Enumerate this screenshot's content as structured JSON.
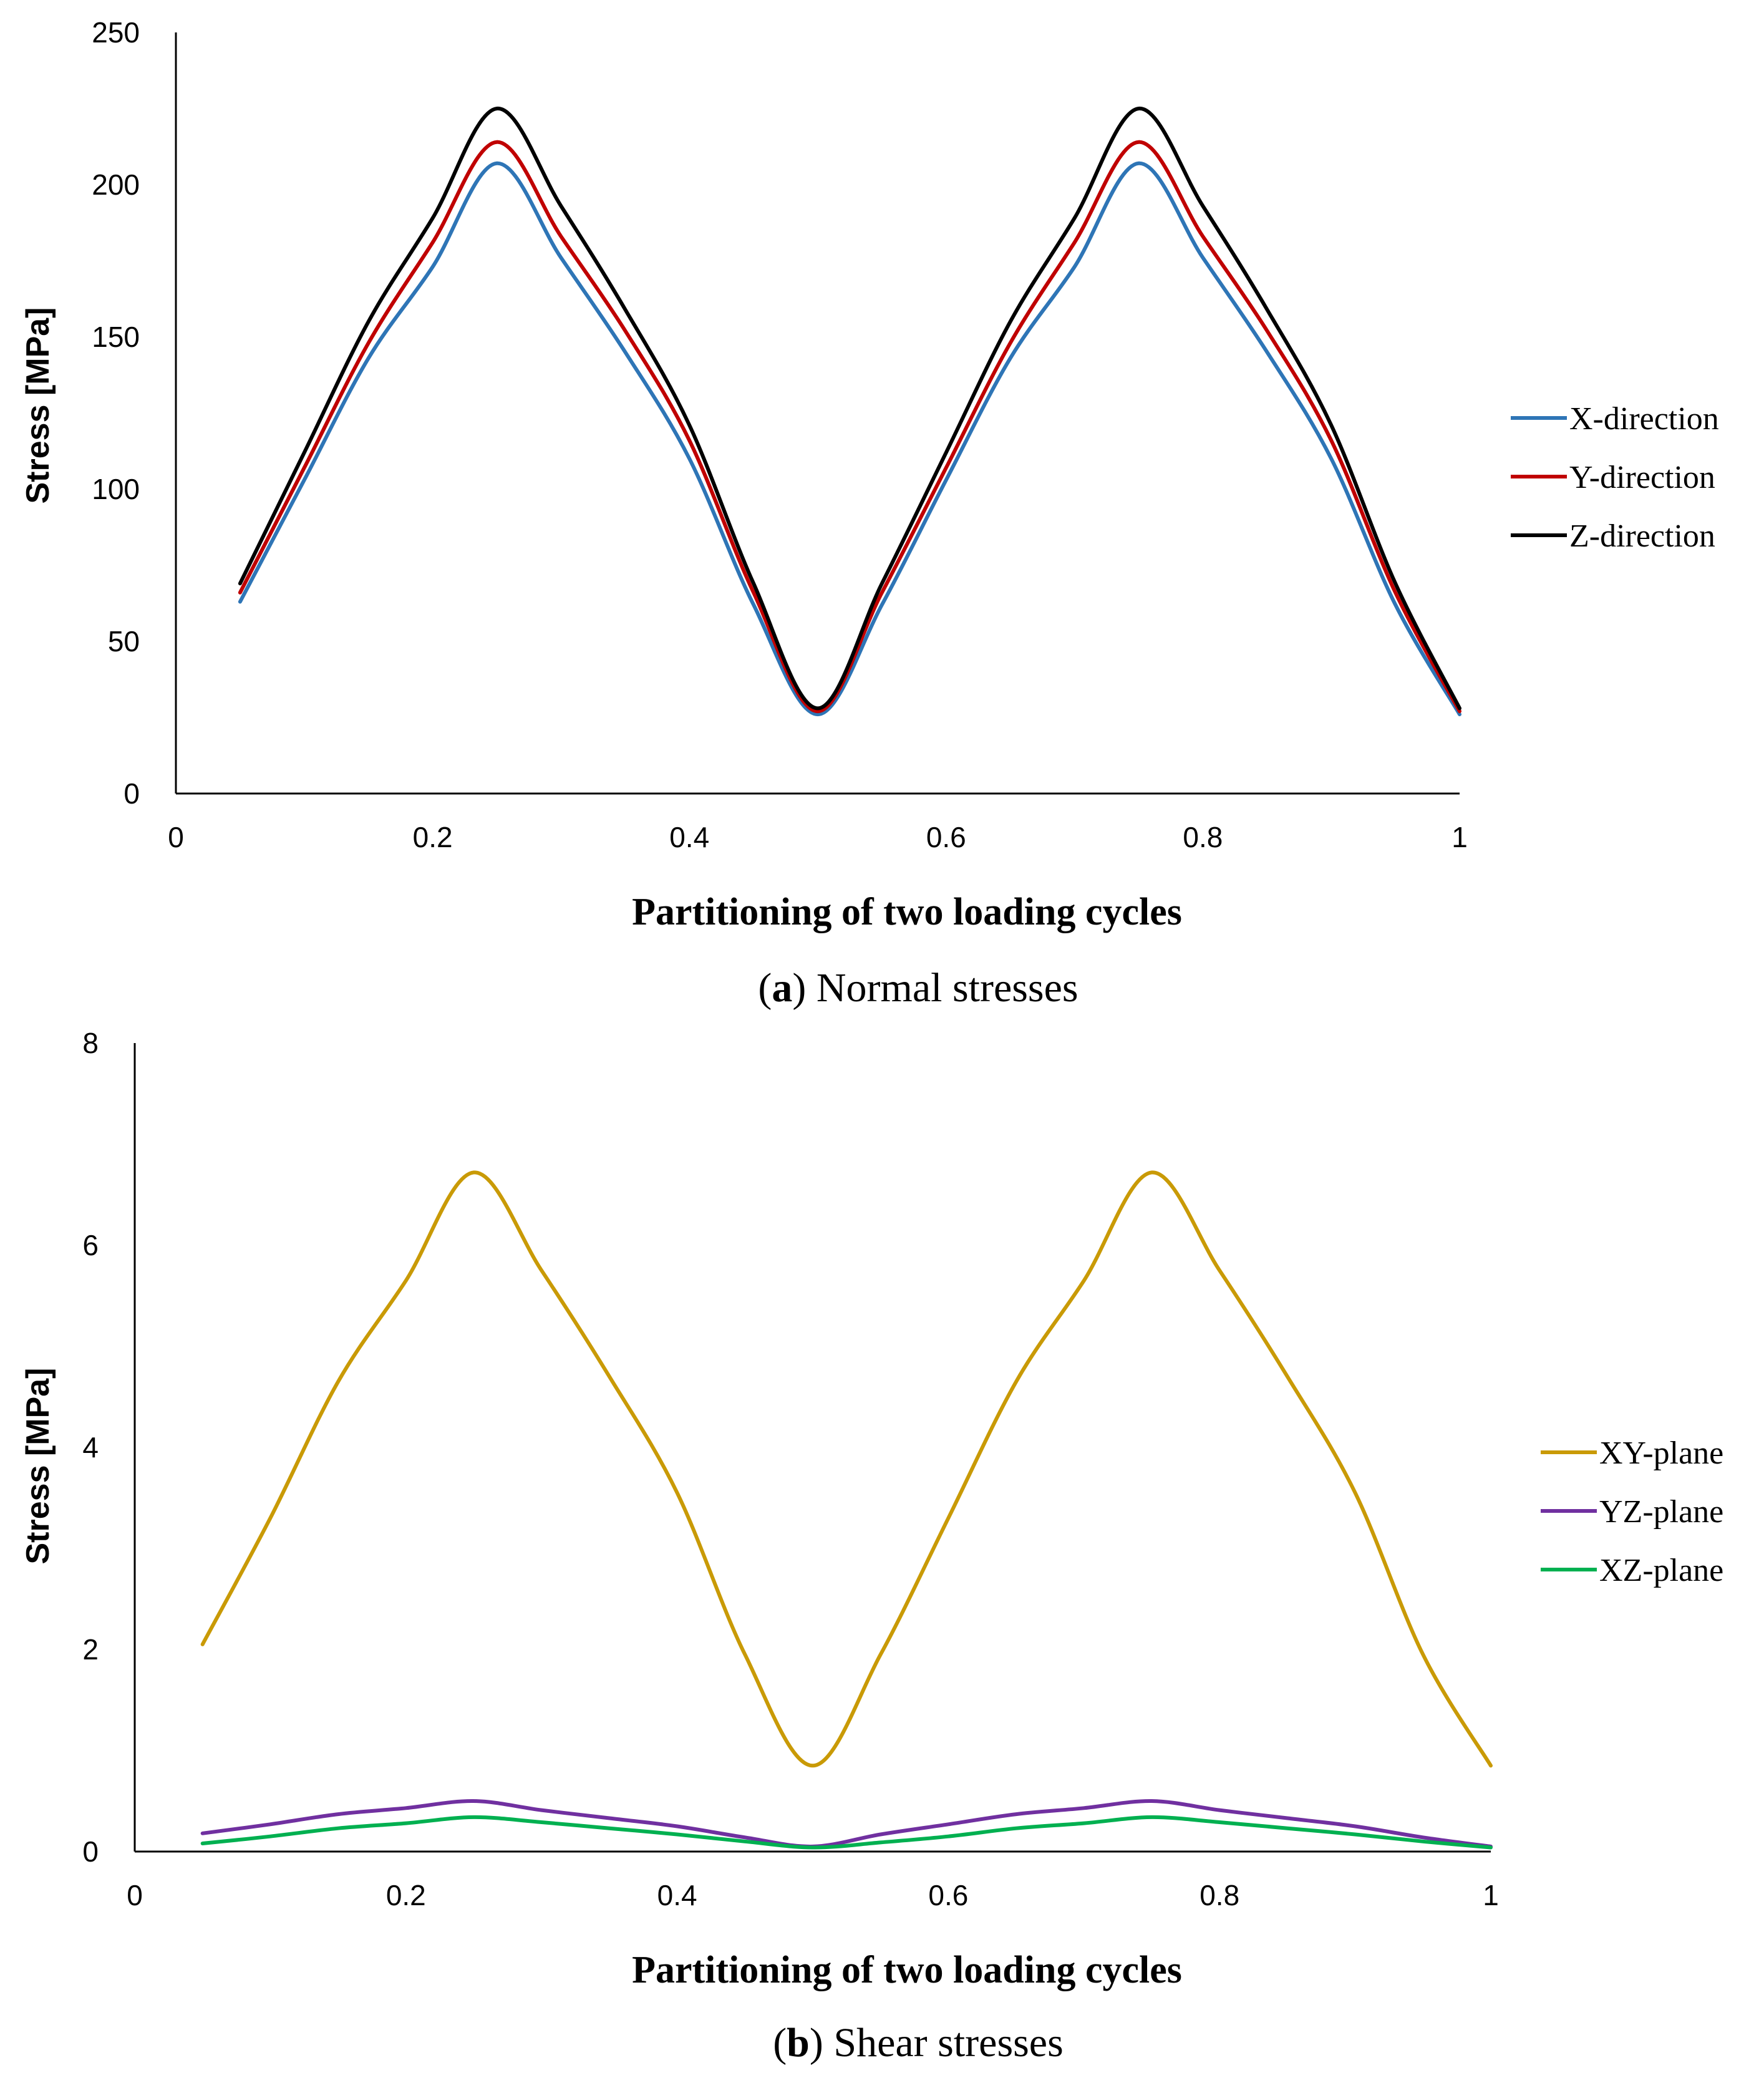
{
  "chart_data": [
    {
      "id": "normal",
      "type": "line",
      "title": "",
      "xlabel": "Partitioning of two loading cycles",
      "ylabel": "Stress [MPa]",
      "caption_letter": "a",
      "caption_text": "Normal stresses",
      "xlim": [
        0,
        1
      ],
      "ylim": [
        0,
        250
      ],
      "xticks": [
        "0",
        "0.2",
        "0.4",
        "0.6",
        "0.8",
        "1"
      ],
      "yticks": [
        "0",
        "50",
        "100",
        "150",
        "200",
        "250"
      ],
      "grid": false,
      "legend_position": "right",
      "x": [
        0.05,
        0.1,
        0.15,
        0.2,
        0.25,
        0.3,
        0.35,
        0.4,
        0.45,
        0.5,
        0.55,
        0.6,
        0.65,
        0.7,
        0.75,
        0.8,
        0.85,
        0.9,
        0.95,
        1.0
      ],
      "series": [
        {
          "name": "X-direction",
          "color": "#2e75b6",
          "values": [
            63,
            103,
            143,
            173,
            207,
            176,
            145,
            110,
            62,
            26,
            62,
            103,
            143,
            173,
            207,
            176,
            145,
            110,
            62,
            26
          ]
        },
        {
          "name": "Y-direction",
          "color": "#c00000",
          "values": [
            66,
            107,
            148,
            181,
            214,
            183,
            152,
            116,
            66,
            27,
            66,
            107,
            148,
            181,
            214,
            183,
            152,
            116,
            66,
            27
          ]
        },
        {
          "name": "Z-direction",
          "color": "#000000",
          "values": [
            69,
            112,
            155,
            189,
            225,
            193,
            159,
            121,
            69,
            28,
            69,
            112,
            155,
            189,
            225,
            193,
            159,
            121,
            69,
            28
          ]
        }
      ]
    },
    {
      "id": "shear",
      "type": "line",
      "title": "",
      "xlabel": "Partitioning of two loading cycles",
      "ylabel": "Stress [MPa]",
      "caption_letter": "b",
      "caption_text": "Shear stresses",
      "xlim": [
        0,
        1
      ],
      "ylim": [
        0,
        8
      ],
      "xticks": [
        "0",
        "0.2",
        "0.4",
        "0.6",
        "0.8",
        "1"
      ],
      "yticks": [
        "0",
        "2",
        "4",
        "6",
        "8"
      ],
      "grid": false,
      "legend_position": "right",
      "x": [
        0.05,
        0.1,
        0.15,
        0.2,
        0.25,
        0.3,
        0.35,
        0.4,
        0.45,
        0.5,
        0.55,
        0.6,
        0.65,
        0.7,
        0.75,
        0.8,
        0.85,
        0.9,
        0.95,
        1.0
      ],
      "series": [
        {
          "name": "XY-plane",
          "color": "#c99a06",
          "values": [
            2.05,
            3.3,
            4.65,
            5.65,
            6.72,
            5.75,
            4.7,
            3.55,
            1.95,
            0.85,
            1.95,
            3.3,
            4.65,
            5.65,
            6.72,
            5.75,
            4.7,
            3.55,
            1.95,
            0.85
          ]
        },
        {
          "name": "YZ-plane",
          "color": "#7030a0",
          "values": [
            0.18,
            0.27,
            0.37,
            0.43,
            0.5,
            0.41,
            0.33,
            0.25,
            0.14,
            0.05,
            0.17,
            0.27,
            0.37,
            0.43,
            0.5,
            0.41,
            0.33,
            0.25,
            0.14,
            0.05
          ]
        },
        {
          "name": "XZ-plane",
          "color": "#00b050",
          "values": [
            0.08,
            0.15,
            0.23,
            0.28,
            0.34,
            0.29,
            0.23,
            0.17,
            0.1,
            0.04,
            0.09,
            0.15,
            0.23,
            0.28,
            0.34,
            0.29,
            0.23,
            0.17,
            0.1,
            0.04
          ]
        }
      ]
    }
  ]
}
